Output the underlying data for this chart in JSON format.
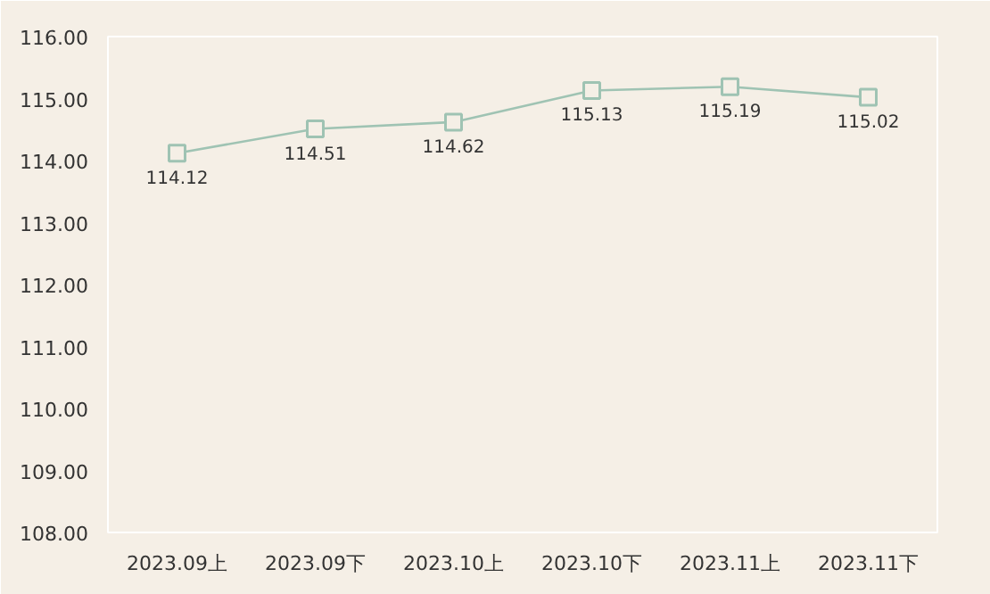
{
  "chart_data": {
    "type": "line",
    "categories": [
      "2023.09上",
      "2023.09下",
      "2023.10上",
      "2023.10下",
      "2023.11上",
      "2023.11下"
    ],
    "series": [
      {
        "color": "#9fc3b3",
        "values": [
          114.12,
          114.51,
          114.62,
          115.13,
          115.19,
          115.02
        ]
      }
    ],
    "ylim": [
      108,
      116
    ],
    "yticks": [
      {
        "value": 108,
        "label": "108.00"
      },
      {
        "value": 109,
        "label": "109.00"
      },
      {
        "value": 110,
        "label": "110.00"
      },
      {
        "value": 111,
        "label": "111.00"
      },
      {
        "value": 112,
        "label": "112.00"
      },
      {
        "value": 113,
        "label": "113.00"
      },
      {
        "value": 114,
        "label": "114.00"
      },
      {
        "value": 115,
        "label": "115.00"
      },
      {
        "value": 116,
        "label": "116.00"
      }
    ],
    "marker": "square",
    "line_style": "solid",
    "data_labels": true,
    "grid": false
  }
}
